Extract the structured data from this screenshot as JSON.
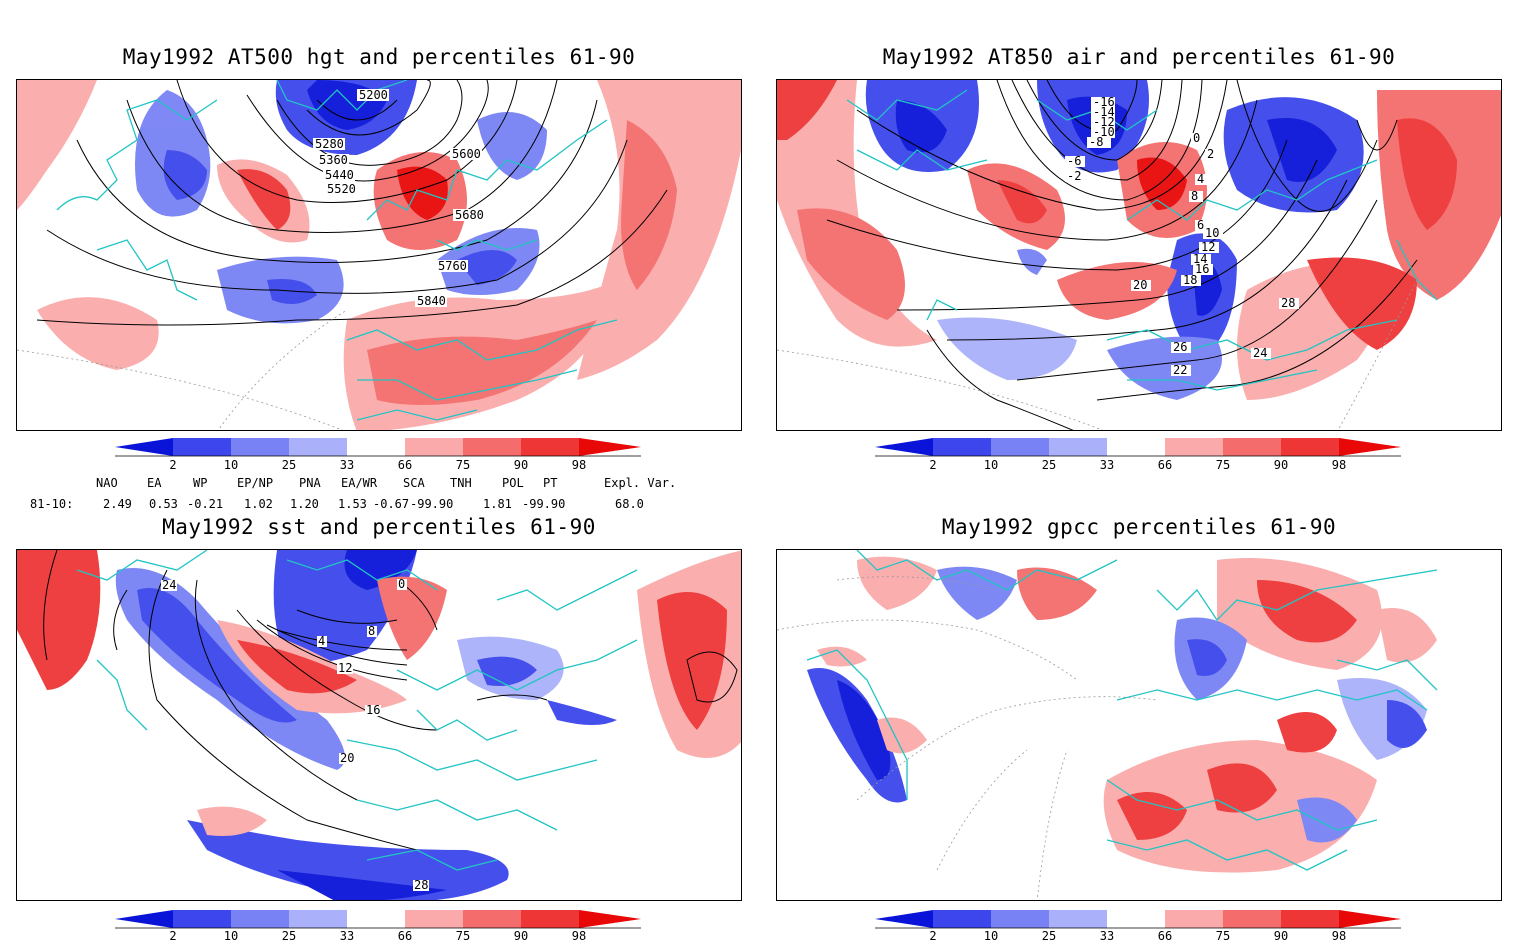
{
  "panels": [
    {
      "id": "hgt500",
      "title": "May1992 AT500 hgt and percentiles 61-90",
      "contour_labels": [
        "5200",
        "5280",
        "5360",
        "5440",
        "5520",
        "5600",
        "5680",
        "5760",
        "5840"
      ]
    },
    {
      "id": "air850",
      "title": "May1992 AT850 air and percentiles 61-90",
      "contour_labels": [
        "-16",
        "-14",
        "-12",
        "-10",
        "-8",
        "-6",
        "-2",
        "0",
        "2",
        "4",
        "6",
        "8",
        "10",
        "12",
        "14",
        "16",
        "18",
        "20",
        "22",
        "24",
        "26",
        "28"
      ]
    },
    {
      "id": "sst",
      "title": "May1992 sst and percentiles 61-90",
      "contour_labels": [
        "0",
        "4",
        "8",
        "12",
        "16",
        "20",
        "24",
        "28"
      ]
    },
    {
      "id": "gpcc",
      "title": "May1992 gpcc percentiles 61-90",
      "contour_labels": []
    }
  ],
  "colorbar": {
    "labels": [
      "2",
      "10",
      "25",
      "33",
      "66",
      "75",
      "90",
      "98"
    ],
    "colors": [
      "#0a14d8",
      "#3c46ec",
      "#7882f4",
      "#aab0fa",
      "#ffffff",
      "#faaaaa",
      "#f46c6c",
      "#ee3636",
      "#e80808"
    ]
  },
  "indices": {
    "headers": [
      "NAO",
      "EA",
      "WP",
      "EP/NP",
      "PNA",
      "EA/WR",
      "SCA",
      "TNH",
      "POL",
      "PT",
      "Expl. Var."
    ],
    "row_label": "81-10:",
    "values": [
      "2.49",
      "0.53",
      "-0.21",
      "1.02",
      "1.20",
      "1.53",
      "-0.67",
      "-99.90",
      "1.81",
      "-99.90",
      "68.0"
    ]
  },
  "colors": {
    "coast": "#22c4c4",
    "red": "#ee3636",
    "blue": "#3c46ec"
  }
}
